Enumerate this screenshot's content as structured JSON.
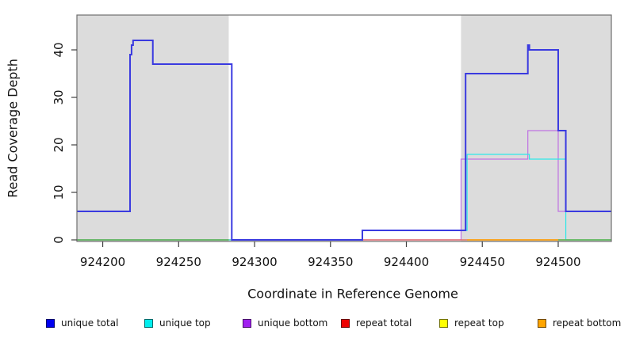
{
  "figure": {
    "x_axis_label": "Coordinate in Reference Genome",
    "y_axis_label": "Read Coverage Depth"
  },
  "chart_data": {
    "type": "line",
    "subtype": "step-coverage-plot",
    "title": "",
    "xlabel": "Coordinate in Reference Genome",
    "ylabel": "Read Coverage Depth",
    "xlim": [
      924183,
      924535
    ],
    "ylim": [
      0,
      47.3
    ],
    "x_ticks": [
      924200,
      924250,
      924300,
      924350,
      924400,
      924450,
      924500
    ],
    "y_ticks": [
      0,
      10,
      20,
      30,
      40
    ],
    "grid": false,
    "legend_position": "bottom",
    "shaded_regions": [
      {
        "name": "repeat-region-left",
        "from": 924183,
        "to": 924283,
        "color": "#dcdcdc"
      },
      {
        "name": "repeat-region-right",
        "from": 924436,
        "to": 924535,
        "color": "#dcdcdc"
      }
    ],
    "series": [
      {
        "name": "repeat top",
        "color": "#ffff33",
        "width": 1.2,
        "points": [
          [
            924183,
            0
          ],
          [
            924535,
            0
          ]
        ]
      },
      {
        "name": "unique bottom",
        "color": "#bf72e2",
        "width": 1.2,
        "points": [
          [
            924183,
            0
          ],
          [
            924436,
            0
          ],
          [
            924436,
            17
          ],
          [
            924480,
            17
          ],
          [
            924480,
            23
          ],
          [
            924500,
            23
          ],
          [
            924500,
            6
          ],
          [
            924535,
            6
          ]
        ]
      },
      {
        "name": "repeat total",
        "color": "#e05a6a",
        "width": 1.2,
        "points": [
          [
            924183,
            0
          ],
          [
            924535,
            0
          ]
        ]
      },
      {
        "name": "repeat bottom",
        "color": "#ff9e00",
        "width": 1.4,
        "points": [
          [
            924440,
            0
          ],
          [
            924500,
            0
          ]
        ]
      },
      {
        "name": "unique top",
        "color": "#2ee8e8",
        "width": 1.2,
        "points": [
          [
            924183,
            0
          ],
          [
            924371,
            0
          ],
          [
            924371,
            2
          ],
          [
            924440,
            2
          ],
          [
            924440,
            18
          ],
          [
            924481,
            18
          ],
          [
            924481,
            17
          ],
          [
            924505,
            17
          ],
          [
            924505,
            0
          ],
          [
            924535,
            0
          ]
        ]
      },
      {
        "name": "baseline overlap left",
        "color": "#57b857",
        "width": 1.4,
        "points": [
          [
            924183,
            0
          ],
          [
            924283,
            0
          ]
        ]
      },
      {
        "name": "baseline overlap right",
        "color": "#57b857",
        "width": 1.4,
        "points": [
          [
            924500,
            0
          ],
          [
            924535,
            0
          ]
        ]
      },
      {
        "name": "unique total",
        "color": "#3a3ae0",
        "width": 2,
        "points": [
          [
            924183,
            6
          ],
          [
            924218,
            6
          ],
          [
            924218,
            39
          ],
          [
            924219,
            39
          ],
          [
            924219,
            41
          ],
          [
            924220,
            41
          ],
          [
            924220,
            42
          ],
          [
            924233,
            42
          ],
          [
            924233,
            37
          ],
          [
            924285,
            37
          ],
          [
            924285,
            0
          ],
          [
            924371,
            0
          ],
          [
            924371,
            2
          ],
          [
            924439,
            2
          ],
          [
            924439,
            35
          ],
          [
            924480,
            35
          ],
          [
            924480,
            41
          ],
          [
            924481,
            41
          ],
          [
            924481,
            40
          ],
          [
            924500,
            40
          ],
          [
            924500,
            23
          ],
          [
            924505,
            23
          ],
          [
            924505,
            6
          ],
          [
            924535,
            6
          ]
        ]
      }
    ],
    "legend": [
      {
        "label": "unique total",
        "color": "#0000f0"
      },
      {
        "label": "unique top",
        "color": "#00eeee"
      },
      {
        "label": "unique bottom",
        "color": "#a020f0"
      },
      {
        "label": "repeat total",
        "color": "#ee0000"
      },
      {
        "label": "repeat top",
        "color": "#ffff00"
      },
      {
        "label": "repeat bottom",
        "color": "#ffa500"
      }
    ]
  },
  "style_colors": {
    "plot_background": "#ffffff",
    "shaded_region": "#dcdcdc",
    "box_border": "#6f6f6f",
    "tick": "#404040",
    "text": "#111111"
  }
}
